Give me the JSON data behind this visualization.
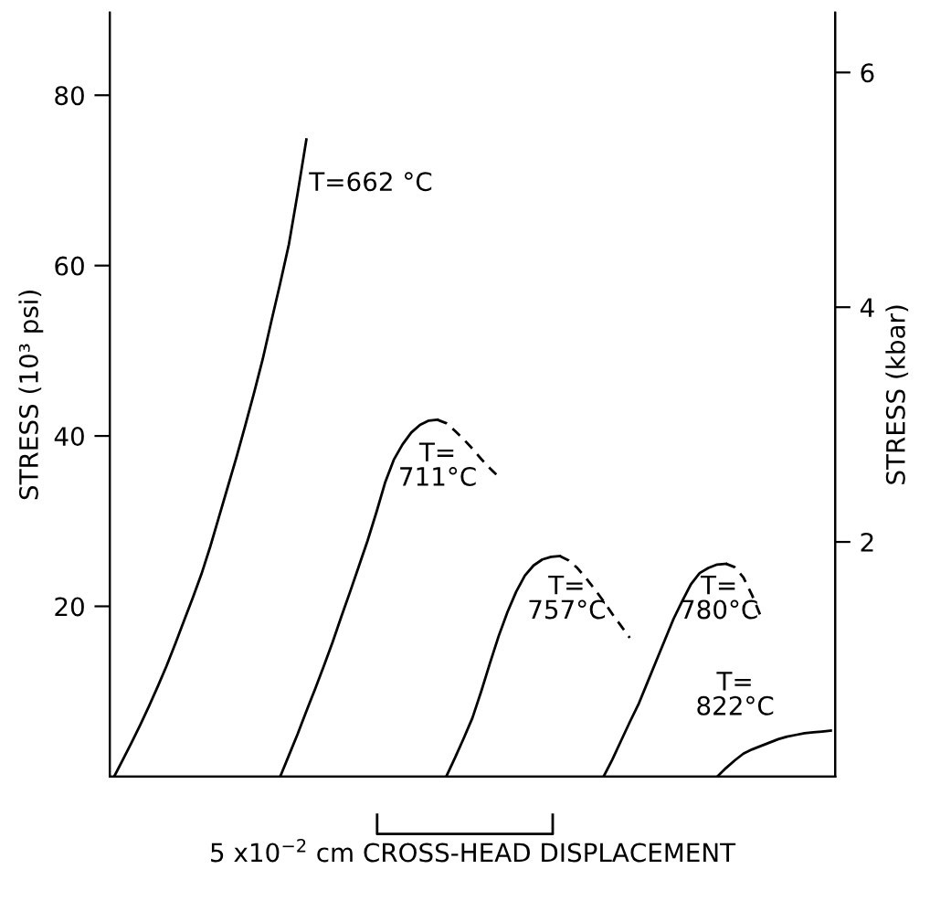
{
  "chart_data": {
    "type": "line",
    "xlabel": "5 x10$^{−2}$ cm CROSS-HEAD DISPLACEMENT",
    "ylabel": "STRESS (10³ psi)",
    "y2label": "STRESS (kbar)",
    "categories": [
      null,
      null,
      null,
      null,
      null,
      null,
      null,
      null,
      null,
      null,
      null,
      null,
      null,
      null,
      null,
      null,
      null,
      null,
      null,
      null,
      null,
      null,
      null,
      null,
      null,
      null,
      null,
      null,
      null,
      null,
      null,
      null,
      null,
      null,
      null,
      null,
      null,
      null,
      null,
      null,
      null,
      null,
      null,
      null,
      null,
      null,
      null,
      null,
      null,
      null,
      null,
      null,
      null,
      null,
      null,
      null,
      null,
      null,
      null,
      null,
      null,
      null,
      null,
      null,
      null,
      null,
      null,
      null,
      null,
      null,
      null,
      null,
      null,
      null,
      null,
      null,
      null,
      null,
      null,
      null,
      null,
      null,
      null
    ],
    "ylim": [
      0,
      89.7
    ],
    "yticks": [
      20,
      40,
      60,
      80
    ],
    "y2lim": [
      0,
      6.51
    ],
    "y2ticks": [
      2,
      4,
      6
    ],
    "grid": false,
    "marker": "none",
    "series": [
      {
        "color": "#000000",
        "line_style": "solid",
        "values": [
          0,
          2,
          4,
          6.1,
          8.3,
          10.6,
          13,
          15.6,
          18.3,
          21,
          23.8,
          27,
          30.5,
          34,
          37.5,
          41.2,
          45,
          49,
          53.5,
          57.9,
          62.5,
          68.5,
          74.8,
          null,
          null,
          null,
          null,
          null,
          null,
          null,
          null,
          null,
          null,
          null,
          null,
          null,
          null,
          null,
          null,
          null,
          null,
          null,
          null,
          null,
          null,
          null,
          null,
          null,
          null,
          null,
          null,
          null,
          null,
          null,
          null,
          null,
          null,
          null,
          null,
          null,
          null,
          null,
          null,
          null,
          null,
          null,
          null,
          null,
          null,
          null,
          null,
          null,
          null,
          null,
          null,
          null,
          null,
          null,
          null,
          null,
          null,
          null,
          null
        ]
      },
      {
        "color": "#000000",
        "line_style": "solid",
        "values": [
          null,
          null,
          null,
          null,
          null,
          null,
          null,
          null,
          null,
          null,
          null,
          null,
          null,
          null,
          null,
          null,
          null,
          null,
          null,
          0,
          2.5,
          5,
          7.7,
          10.3,
          13,
          15.8,
          18.8,
          21.7,
          24.7,
          27.7,
          31,
          34.5,
          37.2,
          39,
          40.4,
          41.3,
          41.8,
          41.9,
          null,
          null,
          null,
          null,
          null,
          null,
          null,
          null,
          null,
          null,
          null,
          null,
          null,
          null,
          null,
          null,
          null,
          null,
          null,
          null,
          null,
          null,
          null,
          null,
          null,
          null,
          null,
          null,
          null,
          null,
          null,
          null,
          null,
          null,
          null,
          null,
          null,
          null,
          null,
          null,
          null,
          null,
          null,
          null,
          null
        ]
      },
      {
        "color": "#000000",
        "line_style": "dashed",
        "values": [
          null,
          null,
          null,
          null,
          null,
          null,
          null,
          null,
          null,
          null,
          null,
          null,
          null,
          null,
          null,
          null,
          null,
          null,
          null,
          null,
          null,
          null,
          null,
          null,
          null,
          null,
          null,
          null,
          null,
          null,
          null,
          null,
          null,
          null,
          null,
          null,
          null,
          41.9,
          41.5,
          40.6,
          39.6,
          38.5,
          37.3,
          36.2,
          35.2,
          null,
          null,
          null,
          null,
          null,
          null,
          null,
          null,
          null,
          null,
          null,
          null,
          null,
          null,
          null,
          null,
          null,
          null,
          null,
          null,
          null,
          null,
          null,
          null,
          null,
          null,
          null,
          null,
          null,
          null,
          null,
          null,
          null,
          null,
          null,
          null,
          null,
          null
        ]
      },
      {
        "color": "#000000",
        "line_style": "solid",
        "values": [
          null,
          null,
          null,
          null,
          null,
          null,
          null,
          null,
          null,
          null,
          null,
          null,
          null,
          null,
          null,
          null,
          null,
          null,
          null,
          null,
          null,
          null,
          null,
          null,
          null,
          null,
          null,
          null,
          null,
          null,
          null,
          null,
          null,
          null,
          null,
          null,
          null,
          null,
          0,
          2.2,
          4.5,
          6.9,
          10,
          13.3,
          16.5,
          19.3,
          21.7,
          23.6,
          24.8,
          25.5,
          25.8,
          25.9,
          null,
          null,
          null,
          null,
          null,
          null,
          null,
          null,
          null,
          null,
          null,
          null,
          null,
          null,
          null,
          null,
          null,
          null,
          null,
          null,
          null,
          null,
          null,
          null,
          null,
          null,
          null,
          null,
          null,
          null,
          null
        ]
      },
      {
        "color": "#000000",
        "line_style": "dashed",
        "values": [
          null,
          null,
          null,
          null,
          null,
          null,
          null,
          null,
          null,
          null,
          null,
          null,
          null,
          null,
          null,
          null,
          null,
          null,
          null,
          null,
          null,
          null,
          null,
          null,
          null,
          null,
          null,
          null,
          null,
          null,
          null,
          null,
          null,
          null,
          null,
          null,
          null,
          null,
          null,
          null,
          null,
          null,
          null,
          null,
          null,
          null,
          null,
          null,
          null,
          null,
          null,
          25.9,
          25.4,
          24.5,
          23.3,
          22,
          20.6,
          19.1,
          17.7,
          16.3,
          null,
          null,
          null,
          null,
          null,
          null,
          null,
          null,
          null,
          null,
          null,
          null,
          null,
          null,
          null,
          null,
          null,
          null,
          null,
          null,
          null,
          null,
          null
        ]
      },
      {
        "color": "#000000",
        "line_style": "solid",
        "values": [
          null,
          null,
          null,
          null,
          null,
          null,
          null,
          null,
          null,
          null,
          null,
          null,
          null,
          null,
          null,
          null,
          null,
          null,
          null,
          null,
          null,
          null,
          null,
          null,
          null,
          null,
          null,
          null,
          null,
          null,
          null,
          null,
          null,
          null,
          null,
          null,
          null,
          null,
          null,
          null,
          null,
          null,
          null,
          null,
          null,
          null,
          null,
          null,
          null,
          null,
          null,
          null,
          null,
          null,
          null,
          null,
          0,
          2,
          4.2,
          6.4,
          8.5,
          11,
          13.5,
          16,
          18.5,
          20.6,
          22.6,
          23.9,
          24.5,
          24.9,
          25,
          null,
          null,
          null,
          null,
          null,
          null,
          null,
          null,
          null,
          null,
          null,
          null
        ]
      },
      {
        "color": "#000000",
        "line_style": "dashed",
        "values": [
          null,
          null,
          null,
          null,
          null,
          null,
          null,
          null,
          null,
          null,
          null,
          null,
          null,
          null,
          null,
          null,
          null,
          null,
          null,
          null,
          null,
          null,
          null,
          null,
          null,
          null,
          null,
          null,
          null,
          null,
          null,
          null,
          null,
          null,
          null,
          null,
          null,
          null,
          null,
          null,
          null,
          null,
          null,
          null,
          null,
          null,
          null,
          null,
          null,
          null,
          null,
          null,
          null,
          null,
          null,
          null,
          null,
          null,
          null,
          null,
          null,
          null,
          null,
          null,
          null,
          null,
          null,
          null,
          null,
          null,
          25,
          24.6,
          23.4,
          21.3,
          18.8,
          null,
          null,
          null,
          null,
          null,
          null,
          null,
          null
        ]
      },
      {
        "color": "#000000",
        "line_style": "solid",
        "values": [
          null,
          null,
          null,
          null,
          null,
          null,
          null,
          null,
          null,
          null,
          null,
          null,
          null,
          null,
          null,
          null,
          null,
          null,
          null,
          null,
          null,
          null,
          null,
          null,
          null,
          null,
          null,
          null,
          null,
          null,
          null,
          null,
          null,
          null,
          null,
          null,
          null,
          null,
          null,
          null,
          null,
          null,
          null,
          null,
          null,
          null,
          null,
          null,
          null,
          null,
          null,
          null,
          null,
          null,
          null,
          null,
          null,
          null,
          null,
          null,
          null,
          null,
          null,
          null,
          null,
          null,
          null,
          null,
          null,
          0,
          1,
          1.9,
          2.7,
          3.2,
          3.6,
          4,
          4.4,
          4.7,
          4.9,
          5.1,
          5.2,
          5.3,
          5.4
        ]
      }
    ],
    "annotations": [
      "T=662 °C",
      "T=\n711°C",
      "T=\n757°C",
      "T=\n780°C",
      "T=\n822°C"
    ]
  }
}
